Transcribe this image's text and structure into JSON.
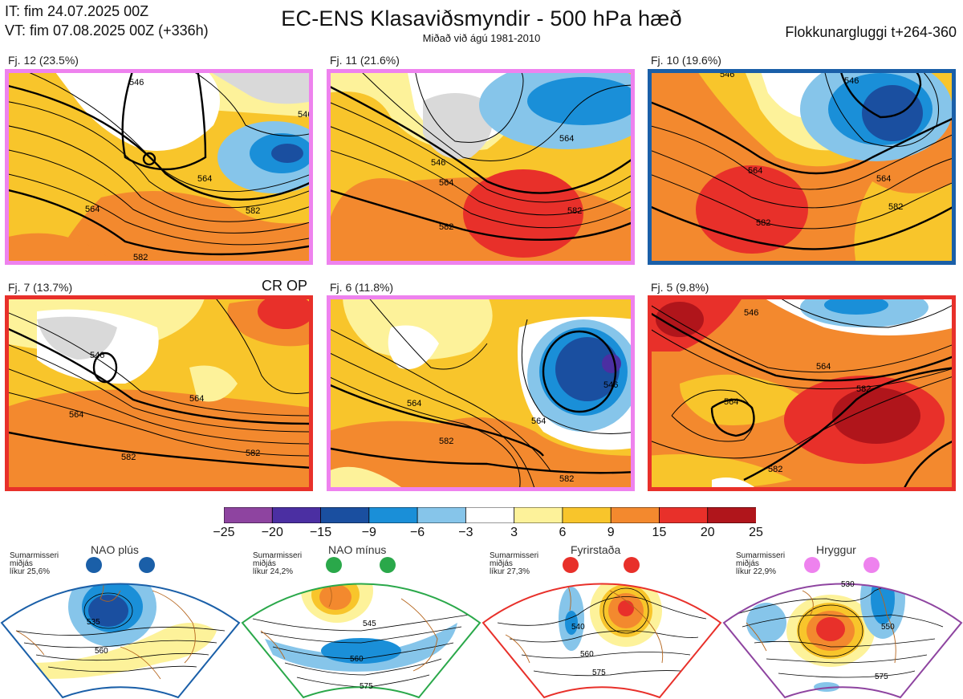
{
  "header": {
    "it": "IT: fim 24.07.2025 00Z",
    "vt": "VT: fim 07.08.2025 00Z  (+336h)",
    "title": "EC-ENS Klasaviðsmyndir - 500 hPa hæð",
    "subtitle": "Miðað við ágú 1981-2010",
    "window": "Flokkunargluggi t+264-360"
  },
  "clusters": [
    {
      "label": "Fj. 12 (23.5%)",
      "regime": "Hryggur",
      "frame_color": "#ee82ee",
      "contours": [
        "546",
        "564",
        "582",
        "564",
        "582",
        "546"
      ]
    },
    {
      "label": "Fj. 11 (21.6%)",
      "regime": "Hryggur",
      "frame_color": "#ee82ee",
      "contours": [
        "546",
        "564",
        "564",
        "582",
        "582"
      ]
    },
    {
      "label": "Fj. 10 (19.6%)",
      "regime": "NAO plús",
      "frame_color": "#1a5fa8",
      "contours": [
        "546",
        "564",
        "582",
        "564",
        "582",
        "546"
      ]
    },
    {
      "label": "Fj. 7 (13.7%)",
      "regime": "Fyrirstaða",
      "frame_color": "#e8302a",
      "contours": [
        "546",
        "564",
        "564",
        "582",
        "582"
      ]
    },
    {
      "label": "Fj. 6 (11.8%)",
      "regime": "Hryggur",
      "frame_color": "#ee82ee",
      "contours": [
        "564",
        "582",
        "546",
        "564",
        "582"
      ]
    },
    {
      "label": "Fj. 5 (9.8%)",
      "regime": "Fyrirstaða",
      "frame_color": "#e8302a",
      "contours": [
        "546",
        "564",
        "564",
        "582",
        "582"
      ]
    }
  ],
  "cr_op": "CR OP",
  "colorbar": {
    "colors": [
      "#8e44a0",
      "#4b2fa2",
      "#1a4fa0",
      "#1a8fd8",
      "#86c5ea",
      "#ffffff",
      "#fdf29a",
      "#f8c52b",
      "#f3892e",
      "#e8302a",
      "#b0151b"
    ],
    "labels": [
      "−25",
      "−20",
      "−15",
      "−9",
      "−6",
      "−3",
      "3",
      "6",
      "9",
      "15",
      "20",
      "25"
    ]
  },
  "regimes": [
    {
      "name": "NAO plús",
      "note": [
        "Sumarmisseri",
        "miðjás",
        "líkur 25,6%"
      ],
      "color": "#1a5fa8",
      "contours": [
        "535",
        "560"
      ]
    },
    {
      "name": "NAO mínus",
      "note": [
        "Sumarmisseri",
        "miðjás",
        "líkur 24,2%"
      ],
      "color": "#2aa84a",
      "contours": [
        "545",
        "560",
        "575"
      ]
    },
    {
      "name": "Fyrirstaða",
      "note": [
        "Sumarmisseri",
        "miðjás",
        "líkur 27,3%"
      ],
      "color": "#e8302a",
      "contours": [
        "540",
        "560",
        "575"
      ]
    },
    {
      "name": "Hryggur",
      "note": [
        "Sumarmisseri",
        "miðjás",
        "líkur 22,9%"
      ],
      "color": "#ee82ee",
      "contours": [
        "530",
        "550",
        "575"
      ]
    }
  ]
}
